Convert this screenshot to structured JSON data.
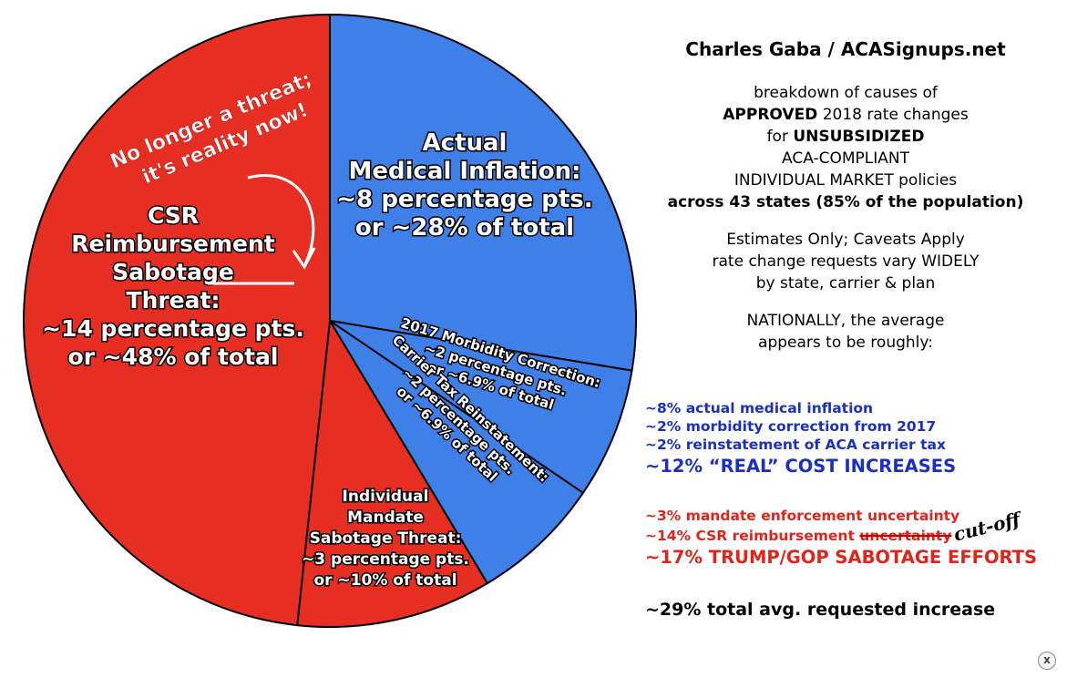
{
  "chart_data": {
    "type": "pie",
    "slices": [
      {
        "name": "Actual Medical Inflation",
        "pct": 27.6,
        "color": "#3e7fe8",
        "label_lines": [
          "Actual",
          "Medical Inflation:",
          "~8 percentage pts.",
          "or ~28% of total"
        ]
      },
      {
        "name": "2017 Morbidity Correction",
        "pct": 6.9,
        "color": "#3e7fe8",
        "label_lines": [
          "2017 Morbidity Correction:",
          "~2 percentage pts.",
          "or ~6.9% of total"
        ]
      },
      {
        "name": "Carrier Tax Reinstatement",
        "pct": 6.9,
        "color": "#3e7fe8",
        "label_lines": [
          "Carrier Tax Reinstatement:",
          "~2 percentage pts.",
          "or ~6.9% of total"
        ]
      },
      {
        "name": "Individual Mandate Sabotage Threat",
        "pct": 10.3,
        "color": "#e62e22",
        "label_lines": [
          "Individual",
          "Mandate",
          "Sabotage Threat:",
          "~3 percentage pts.",
          "or ~10% of total"
        ]
      },
      {
        "name": "CSR Reimbursement Sabotage",
        "pct": 48.3,
        "color": "#e62e22",
        "label_lines": [
          "CSR",
          "Reimbursement",
          "Sabotage",
          "Threat:",
          "~14 percentage pts.",
          "or ~48% of total"
        ]
      }
    ],
    "annotation": [
      "No longer a threat;",
      "it's reality now!"
    ]
  },
  "sidebar": {
    "title": "Charles Gaba / ACASignups.net",
    "desc1": "breakdown of causes of",
    "desc2_bold": "APPROVED",
    "desc2_rest": " 2018 rate changes",
    "desc3_pre": "for ",
    "desc3_bold": "UNSUBSIDIZED",
    "desc4": "ACA-COMPLIANT",
    "desc5": "INDIVIDUAL MARKET policies",
    "desc6": "across 43 states (85% of the population)",
    "est1": "Estimates Only; Caveats Apply",
    "est2": "rate change requests vary WIDELY",
    "est3": "by state, carrier & plan",
    "nat1": "NATIONALLY, the average",
    "nat2": "appears to be roughly:"
  },
  "lists": {
    "blue1": "~8% actual medical inflation",
    "blue2": "~2% morbidity correction from 2017",
    "blue3": "~2% reinstatement of ACA carrier tax",
    "blue_total": "~12% “REAL” COST INCREASES",
    "red1": "~3% mandate enforcement uncertainty",
    "red2_pre": "~14% CSR reimbursement ",
    "red2_strike": "uncertainty",
    "red2_hand": "cut-off",
    "red_total": "~17% TRUMP/GOP SABOTAGE EFFORTS",
    "grand_total": "~29% total avg. requested increase"
  },
  "close": {
    "glyph": "x"
  },
  "colors": {
    "blue": "#1a2fc8",
    "red": "#e2231a",
    "pie_blue": "#3e7fe8",
    "pie_red": "#e62e22"
  }
}
